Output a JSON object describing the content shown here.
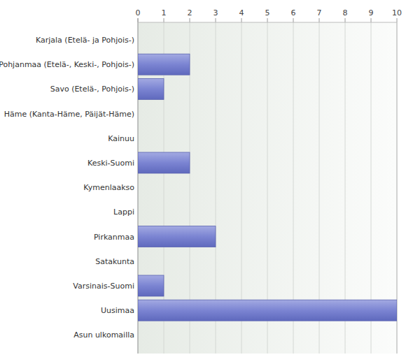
{
  "chart_data": {
    "type": "bar",
    "orientation": "horizontal",
    "categories": [
      "Karjala (Etelä- ja Pohjois-)",
      "Pohjanmaa (Etelä-, Keski-, Pohjois-)",
      "Savo (Etelä-, Pohjois-)",
      "Häme (Kanta-Häme, Päijät-Häme)",
      "Kainuu",
      "Keski-Suomi",
      "Kymenlaakso",
      "Lappi",
      "Pirkanmaa",
      "Satakunta",
      "Varsinais-Suomi",
      "Uusimaa",
      "Asun ulkomailla"
    ],
    "values": [
      0,
      2,
      1,
      0,
      0,
      2,
      0,
      0,
      3,
      0,
      1,
      10,
      0
    ],
    "color": "#7b84d2",
    "xlim": [
      0,
      10
    ],
    "xticks": [
      0,
      1,
      2,
      3,
      4,
      5,
      6,
      7,
      8,
      9,
      10
    ],
    "grid": true
  }
}
